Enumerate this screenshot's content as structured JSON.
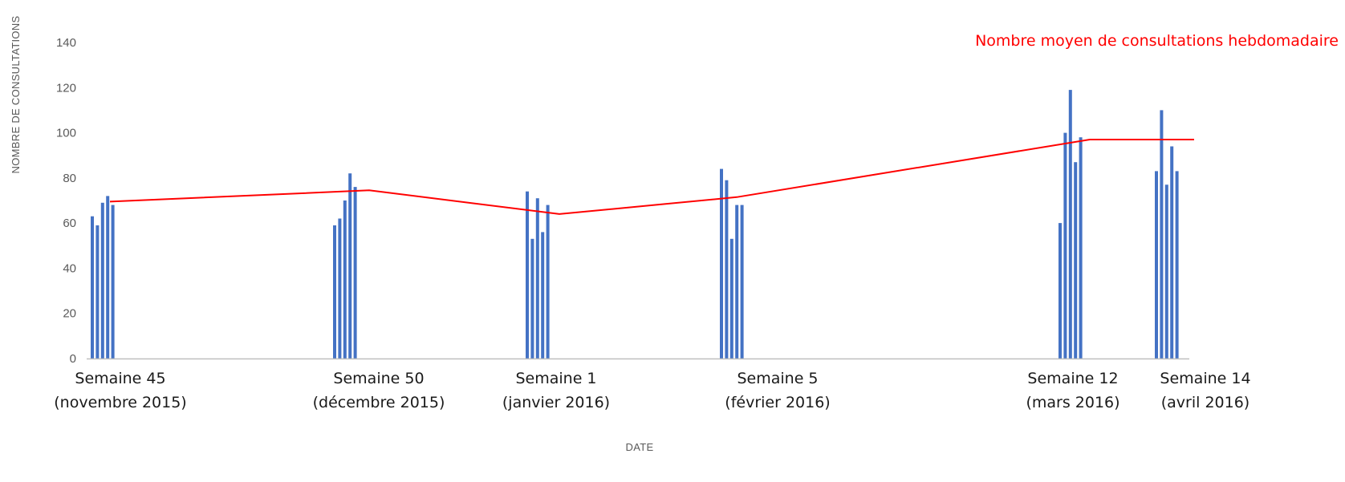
{
  "chart_data": {
    "type": "bar",
    "title": "",
    "xlabel": "DATE",
    "ylabel": "NOMBRE DE CONSULTATIONS",
    "ylim": [
      0,
      140
    ],
    "yticks": [
      0,
      20,
      40,
      60,
      80,
      100,
      120,
      140
    ],
    "grid": false,
    "colors": {
      "bars": "#4472C4",
      "line": "#FF0000",
      "legend_text": "#FF0000"
    },
    "groups": [
      {
        "label_week": "Semaine 45",
        "label_month": "(novembre 2015)",
        "values": [
          63,
          59,
          69,
          72,
          68
        ]
      },
      {
        "label_week": "Semaine 50",
        "label_month": "(décembre 2015)",
        "values": [
          59,
          62,
          70,
          82,
          76
        ]
      },
      {
        "label_week": "Semaine 1",
        "label_month": "(janvier 2016)",
        "values": [
          74,
          53,
          71,
          56,
          68
        ]
      },
      {
        "label_week": "Semaine 5",
        "label_month": "(février 2016)",
        "values": [
          84,
          79,
          53,
          68,
          68
        ]
      },
      {
        "label_week": "Semaine 12",
        "label_month": "(mars 2016)",
        "values": [
          60,
          100,
          119,
          87,
          98
        ]
      },
      {
        "label_week": "Semaine 14",
        "label_month": "(avril 2016)",
        "values": [
          83,
          110,
          77,
          94,
          83
        ]
      }
    ],
    "weekly_average_line": {
      "name": "Nombre moyen de consultations hebdomadaire",
      "values": [
        69.5,
        74.5,
        64,
        71.5,
        97,
        97
      ]
    },
    "legend_position": "top-right"
  }
}
